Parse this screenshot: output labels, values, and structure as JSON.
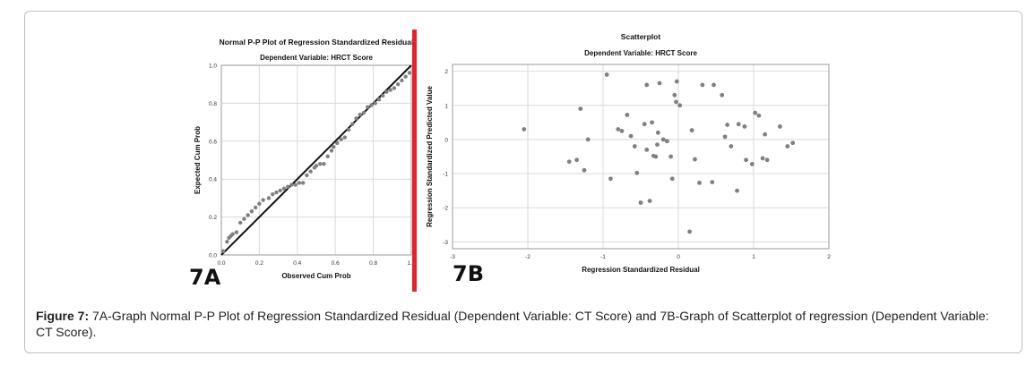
{
  "figure": {
    "caption_label": "Figure 7:",
    "caption_text": "7A-Graph Normal P-P Plot of Regression Standardized Residual (Dependent Variable: CT Score) and 7B-Graph of Scatterplot of regression (Dependent Variable: CT Score).",
    "label_a": "7A",
    "label_b": "7B",
    "divider_color": "#e8202a"
  },
  "chart_data": [
    {
      "type": "scatter",
      "title": "Normal P-P Plot of Regression Standardized Residual",
      "subtitle": "Dependent Variable: HRCT Score",
      "xlabel": "Observed Cum Prob",
      "ylabel": "Expected Cum Prob",
      "xlim": [
        0,
        1
      ],
      "ylim": [
        0,
        1
      ],
      "xticks": [
        "0.0",
        "0.2",
        "0.4",
        "0.6",
        "0.8",
        "1.0"
      ],
      "yticks": [
        "0.0",
        "0.2",
        "0.4",
        "0.6",
        "0.8",
        "1.0"
      ],
      "grid": true,
      "reference_line": [
        [
          0,
          0
        ],
        [
          1,
          1
        ]
      ],
      "point_color": "#808080",
      "points": [
        [
          0.01,
          0.02
        ],
        [
          0.03,
          0.07
        ],
        [
          0.04,
          0.09
        ],
        [
          0.05,
          0.1
        ],
        [
          0.06,
          0.11
        ],
        [
          0.08,
          0.12
        ],
        [
          0.1,
          0.17
        ],
        [
          0.12,
          0.19
        ],
        [
          0.14,
          0.21
        ],
        [
          0.16,
          0.23
        ],
        [
          0.18,
          0.25
        ],
        [
          0.2,
          0.27
        ],
        [
          0.22,
          0.29
        ],
        [
          0.25,
          0.3
        ],
        [
          0.27,
          0.32
        ],
        [
          0.29,
          0.33
        ],
        [
          0.31,
          0.34
        ],
        [
          0.33,
          0.35
        ],
        [
          0.35,
          0.36
        ],
        [
          0.37,
          0.37
        ],
        [
          0.39,
          0.37
        ],
        [
          0.41,
          0.38
        ],
        [
          0.43,
          0.38
        ],
        [
          0.45,
          0.42
        ],
        [
          0.47,
          0.44
        ],
        [
          0.49,
          0.46
        ],
        [
          0.5,
          0.47
        ],
        [
          0.52,
          0.48
        ],
        [
          0.54,
          0.48
        ],
        [
          0.56,
          0.52
        ],
        [
          0.58,
          0.55
        ],
        [
          0.59,
          0.57
        ],
        [
          0.61,
          0.59
        ],
        [
          0.63,
          0.61
        ],
        [
          0.65,
          0.62
        ],
        [
          0.67,
          0.66
        ],
        [
          0.69,
          0.69
        ],
        [
          0.71,
          0.72
        ],
        [
          0.73,
          0.74
        ],
        [
          0.75,
          0.75
        ],
        [
          0.77,
          0.78
        ],
        [
          0.79,
          0.79
        ],
        [
          0.81,
          0.8
        ],
        [
          0.83,
          0.82
        ],
        [
          0.85,
          0.84
        ],
        [
          0.87,
          0.86
        ],
        [
          0.89,
          0.87
        ],
        [
          0.91,
          0.88
        ],
        [
          0.93,
          0.9
        ],
        [
          0.95,
          0.92
        ],
        [
          0.97,
          0.94
        ],
        [
          0.99,
          0.96
        ]
      ]
    },
    {
      "type": "scatter",
      "title": "Scatterplot",
      "subtitle": "Dependent Variable: HRCT Score",
      "xlabel": "Regression Standardized Residual",
      "ylabel": "Regression Standardized Predicted Value",
      "xlim": [
        -3,
        2
      ],
      "ylim": [
        -3.2,
        2.2
      ],
      "xticks": [
        -3,
        -2,
        -1,
        0,
        1,
        2
      ],
      "yticks": [
        -3,
        -2,
        -1,
        0,
        1,
        2
      ],
      "grid": true,
      "point_color": "#808080",
      "points": [
        [
          -2.05,
          0.3
        ],
        [
          -1.45,
          -0.65
        ],
        [
          -1.35,
          -0.6
        ],
        [
          -1.3,
          0.9
        ],
        [
          -1.25,
          -0.9
        ],
        [
          -1.2,
          0
        ],
        [
          -0.95,
          1.9
        ],
        [
          -0.9,
          -1.15
        ],
        [
          -0.8,
          0.3
        ],
        [
          -0.75,
          0.25
        ],
        [
          -0.68,
          0.72
        ],
        [
          -0.63,
          0.1
        ],
        [
          -0.58,
          -0.2
        ],
        [
          -0.55,
          -0.98
        ],
        [
          -0.5,
          -1.85
        ],
        [
          -0.45,
          0.45
        ],
        [
          -0.42,
          -0.3
        ],
        [
          -0.42,
          1.6
        ],
        [
          -0.38,
          -1.8
        ],
        [
          -0.35,
          0.5
        ],
        [
          -0.33,
          -0.48
        ],
        [
          -0.3,
          -0.5
        ],
        [
          -0.28,
          -0.15
        ],
        [
          -0.27,
          0.2
        ],
        [
          -0.25,
          1.65
        ],
        [
          -0.2,
          0
        ],
        [
          -0.15,
          -0.05
        ],
        [
          -0.1,
          -0.5
        ],
        [
          -0.08,
          -1.15
        ],
        [
          -0.05,
          1.3
        ],
        [
          -0.03,
          1.1
        ],
        [
          -0.02,
          1.7
        ],
        [
          0.02,
          1.0
        ],
        [
          0.15,
          -2.7
        ],
        [
          0.18,
          0.27
        ],
        [
          0.22,
          -0.58
        ],
        [
          0.28,
          -1.27
        ],
        [
          0.32,
          1.6
        ],
        [
          0.45,
          -1.25
        ],
        [
          0.47,
          1.6
        ],
        [
          0.58,
          1.3
        ],
        [
          0.62,
          0.08
        ],
        [
          0.65,
          0.43
        ],
        [
          0.7,
          -0.2
        ],
        [
          0.78,
          -1.5
        ],
        [
          0.8,
          0.45
        ],
        [
          0.88,
          0.38
        ],
        [
          0.9,
          -0.6
        ],
        [
          0.98,
          -0.72
        ],
        [
          1.02,
          0.78
        ],
        [
          1.07,
          0.7
        ],
        [
          1.12,
          -0.55
        ],
        [
          1.15,
          0.15
        ],
        [
          1.18,
          -0.6
        ],
        [
          1.35,
          0.38
        ],
        [
          1.45,
          -0.2
        ],
        [
          1.52,
          -0.1
        ]
      ]
    }
  ]
}
